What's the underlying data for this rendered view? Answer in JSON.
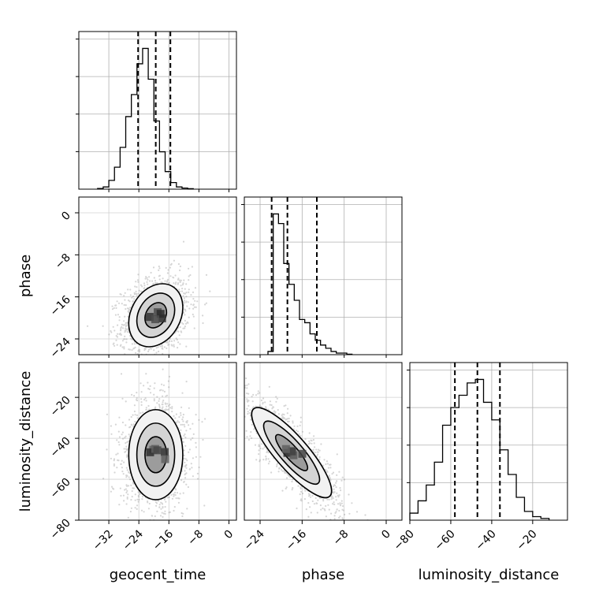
{
  "chart_data": {
    "type": "corner",
    "parameters": [
      "geocent_time",
      "phase",
      "luminosity_distance"
    ],
    "grid": true,
    "ranges": {
      "geocent_time": [
        -40,
        2
      ],
      "phase": [
        -27,
        3
      ],
      "luminosity_distance": [
        -80,
        -3
      ]
    },
    "ticks": {
      "geocent_time": [
        -32,
        -24,
        -16,
        -8,
        0
      ],
      "phase": [
        -24,
        -16,
        -8,
        0
      ],
      "luminosity_distance": [
        -80,
        -60,
        -40,
        -20
      ]
    },
    "tick_labels": {
      "geocent_time": [
        "−32",
        "−24",
        "−16",
        "−8",
        "0"
      ],
      "phase": [
        "−24",
        "−16",
        "−8",
        "0"
      ],
      "luminosity_distance": [
        "−80",
        "−60",
        "−40",
        "−20"
      ]
    },
    "phase_y_tick_labels": [
      "0",
      "−8",
      "−16",
      "−24"
    ],
    "luminosity_distance_y_tick_labels": [
      "−20",
      "−40",
      "−60",
      "−80"
    ],
    "quantiles": {
      "geocent_time": [
        -24.2,
        -19.5,
        -15.6
      ],
      "phase": [
        -21.8,
        -18.8,
        -13.2
      ],
      "luminosity_distance": [
        -58,
        -47,
        -36
      ]
    },
    "histograms": {
      "geocent_time": {
        "bin_width": 1.5,
        "bin_start": -35,
        "counts": [
          0.3,
          1,
          4,
          10,
          19,
          33,
          43,
          57,
          64,
          50,
          31,
          17,
          8,
          3,
          1,
          0.5,
          0.2
        ]
      },
      "phase": {
        "bin_width": 1,
        "bin_start": -22.5,
        "counts": [
          2,
          88,
          82,
          57,
          44,
          34,
          22,
          20,
          13,
          9,
          6,
          4,
          2,
          1,
          1,
          0.3
        ]
      },
      "luminosity_distance": {
        "bin_width": 4,
        "bin_start": -80,
        "counts": [
          4,
          11,
          20,
          33,
          54,
          64,
          71,
          78,
          80,
          67,
          57,
          40,
          26,
          13,
          5,
          2,
          1
        ]
      }
    },
    "pairs": [
      {
        "x": "geocent_time",
        "y": "phase",
        "center": [
          -19.5,
          -19.5
        ],
        "sd": [
          3.6,
          3.0
        ],
        "rho": 0.25
      },
      {
        "x": "geocent_time",
        "y": "luminosity_distance",
        "center": [
          -19.5,
          -48
        ],
        "sd": [
          3.6,
          11
        ],
        "rho": 0.0
      },
      {
        "x": "phase",
        "y": "luminosity_distance",
        "center": [
          -18,
          -47
        ],
        "sd": [
          3.8,
          11
        ],
        "rho": -0.85
      }
    ]
  }
}
